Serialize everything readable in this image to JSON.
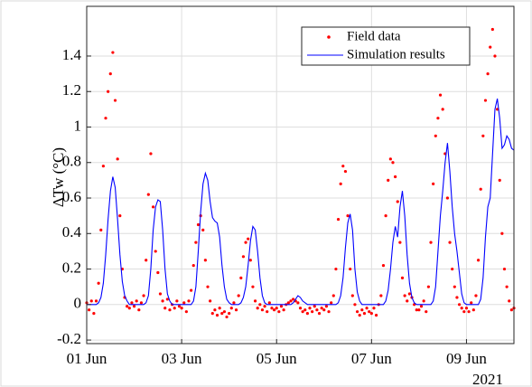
{
  "chart_data": {
    "type": "scatter-line",
    "y_label": "ΔTw (°C)",
    "x_year_label": "2021",
    "xlim": [
      1,
      10
    ],
    "ylim": [
      -0.22,
      1.68
    ],
    "xticks": [
      {
        "value": 1,
        "label": "01 Jun"
      },
      {
        "value": 3,
        "label": "03 Jun"
      },
      {
        "value": 5,
        "label": "05 Jun"
      },
      {
        "value": 7,
        "label": "07 Jun"
      },
      {
        "value": 9,
        "label": "09 Jun"
      }
    ],
    "yticks": [
      -0.2,
      0,
      0.2,
      0.4,
      0.6,
      0.8,
      1,
      1.2,
      1.4
    ],
    "grid": true,
    "legend": "top-right",
    "x": [
      1,
      1.05,
      1.1,
      1.15,
      1.2,
      1.25,
      1.3,
      1.35,
      1.4,
      1.45,
      1.5,
      1.55,
      1.6,
      1.65,
      1.7,
      1.75,
      1.8,
      1.85,
      1.9,
      1.95,
      2,
      2.05,
      2.1,
      2.15,
      2.2,
      2.25,
      2.3,
      2.35,
      2.4,
      2.45,
      2.5,
      2.55,
      2.6,
      2.65,
      2.7,
      2.75,
      2.8,
      2.85,
      2.9,
      2.95,
      3,
      3.05,
      3.1,
      3.15,
      3.2,
      3.25,
      3.3,
      3.35,
      3.4,
      3.45,
      3.5,
      3.55,
      3.6,
      3.65,
      3.7,
      3.75,
      3.8,
      3.85,
      3.9,
      3.95,
      4,
      4.05,
      4.1,
      4.15,
      4.2,
      4.25,
      4.3,
      4.35,
      4.4,
      4.45,
      4.5,
      4.55,
      4.6,
      4.65,
      4.7,
      4.75,
      4.8,
      4.85,
      4.9,
      4.95,
      5,
      5.05,
      5.1,
      5.15,
      5.2,
      5.25,
      5.3,
      5.35,
      5.4,
      5.45,
      5.5,
      5.55,
      5.6,
      5.65,
      5.7,
      5.75,
      5.8,
      5.85,
      5.9,
      5.95,
      6,
      6.05,
      6.1,
      6.15,
      6.2,
      6.25,
      6.3,
      6.35,
      6.4,
      6.45,
      6.5,
      6.55,
      6.6,
      6.65,
      6.7,
      6.75,
      6.8,
      6.85,
      6.9,
      6.95,
      7,
      7.05,
      7.1,
      7.15,
      7.2,
      7.25,
      7.3,
      7.35,
      7.4,
      7.45,
      7.5,
      7.55,
      7.6,
      7.65,
      7.7,
      7.75,
      7.8,
      7.85,
      7.9,
      7.95,
      8,
      8.05,
      8.1,
      8.15,
      8.2,
      8.25,
      8.3,
      8.35,
      8.4,
      8.45,
      8.5,
      8.55,
      8.6,
      8.65,
      8.7,
      8.75,
      8.8,
      8.85,
      8.9,
      8.95,
      9,
      9.05,
      9.1,
      9.15,
      9.2,
      9.25,
      9.3,
      9.35,
      9.4,
      9.45,
      9.5,
      9.55,
      9.6,
      9.65,
      9.7,
      9.75,
      9.8,
      9.85,
      9.9,
      9.95,
      10
    ],
    "series": [
      {
        "name": "Field data",
        "kind": "scatter",
        "color": "#ff0000",
        "values": [
          0.01,
          -0.03,
          0.02,
          -0.05,
          0.02,
          0.12,
          0.42,
          0.78,
          1.05,
          1.2,
          1.3,
          1.42,
          1.15,
          0.82,
          0.5,
          0.2,
          0.04,
          -0.01,
          -0.02,
          0.01,
          -0.01,
          0.02,
          -0.03,
          0.01,
          0.05,
          0.25,
          0.62,
          0.85,
          0.55,
          0.3,
          0.18,
          0.06,
          0.02,
          -0.02,
          0.03,
          -0.03,
          0,
          -0.02,
          0.02,
          -0.01,
          -0.02,
          0.01,
          -0.04,
          0.02,
          0.08,
          0.22,
          0.35,
          0.45,
          0.5,
          0.42,
          0.25,
          0.1,
          0.02,
          -0.05,
          -0.03,
          -0.06,
          -0.02,
          -0.05,
          -0.04,
          -0.07,
          -0.05,
          -0.02,
          0.01,
          -0.03,
          0.05,
          0.15,
          0.27,
          0.35,
          0.37,
          0.25,
          0.1,
          0.02,
          -0.02,
          0,
          -0.03,
          -0.01,
          -0.04,
          0.01,
          -0.02,
          -0.03,
          -0.02,
          -0.04,
          -0.01,
          -0.03,
          0,
          0.01,
          0.02,
          0.03,
          0.02,
          0.01,
          -0.02,
          -0.04,
          -0.03,
          -0.05,
          -0.02,
          -0.04,
          -0.01,
          -0.03,
          -0.05,
          -0.02,
          -0.03,
          -0.01,
          -0.04,
          0.01,
          0.05,
          0.2,
          0.48,
          0.68,
          0.78,
          0.75,
          0.5,
          0.2,
          0.05,
          0,
          -0.04,
          -0.06,
          -0.03,
          -0.05,
          -0.02,
          -0.04,
          -0.05,
          -0.02,
          -0.06,
          0,
          0.05,
          0.22,
          0.5,
          0.7,
          0.82,
          0.8,
          0.72,
          0.58,
          0.35,
          0.15,
          0.05,
          0.02,
          0.06,
          0.04,
          0,
          -0.03,
          -0.03,
          -0.01,
          0.02,
          -0.04,
          0.1,
          0.35,
          0.68,
          0.95,
          1.05,
          1.18,
          1.1,
          0.85,
          0.6,
          0.35,
          0.2,
          0.1,
          0.04,
          0,
          -0.02,
          -0.04,
          -0.02,
          -0.04,
          0.01,
          -0.03,
          0.05,
          0.25,
          0.65,
          0.95,
          1.15,
          1.3,
          1.45,
          1.55,
          1.4,
          1.1,
          0.7,
          0.4,
          0.2,
          0.1,
          0.02,
          -0.03,
          -0.02
        ]
      },
      {
        "name": "Simulation results",
        "kind": "line",
        "color": "#0000ff",
        "values": [
          0,
          0,
          0,
          0,
          0,
          0.01,
          0.04,
          0.12,
          0.28,
          0.48,
          0.64,
          0.72,
          0.66,
          0.48,
          0.28,
          0.13,
          0.05,
          0.02,
          0,
          0,
          0,
          0,
          0,
          0,
          0,
          0.01,
          0.05,
          0.2,
          0.42,
          0.55,
          0.59,
          0.58,
          0.42,
          0.2,
          0.06,
          0.02,
          0,
          0,
          0,
          0,
          0,
          0,
          0,
          0,
          0,
          0.02,
          0.1,
          0.3,
          0.52,
          0.68,
          0.74,
          0.7,
          0.58,
          0.49,
          0.47,
          0.46,
          0.38,
          0.22,
          0.1,
          0.03,
          0.01,
          0,
          0,
          0,
          0,
          0.01,
          0.04,
          0.1,
          0.22,
          0.36,
          0.44,
          0.42,
          0.3,
          0.15,
          0.05,
          0.01,
          0,
          0,
          0,
          0,
          0,
          0,
          0,
          0,
          0,
          0,
          0,
          0.01,
          0.03,
          0.05,
          0.04,
          0.02,
          0.01,
          0,
          0,
          0,
          0,
          0,
          0,
          0,
          0,
          0,
          0,
          0,
          0,
          0,
          0.01,
          0.05,
          0.15,
          0.32,
          0.46,
          0.51,
          0.42,
          0.2,
          0.07,
          0.02,
          0,
          0,
          0,
          0,
          0,
          0,
          0,
          0,
          0,
          0,
          0.02,
          0.08,
          0.2,
          0.35,
          0.44,
          0.38,
          0.55,
          0.64,
          0.5,
          0.28,
          0.12,
          0.04,
          0.01,
          0,
          0,
          0,
          0,
          0,
          0,
          0,
          0.02,
          0.1,
          0.3,
          0.5,
          0.64,
          0.8,
          0.91,
          0.75,
          0.55,
          0.4,
          0.3,
          0.18,
          0.06,
          0.01,
          0,
          0,
          0,
          0,
          0,
          0,
          0.03,
          0.15,
          0.38,
          0.55,
          0.6,
          0.85,
          1.1,
          1.16,
          1.05,
          0.88,
          0.9,
          0.95,
          0.93,
          0.88,
          0.87
        ]
      }
    ]
  }
}
